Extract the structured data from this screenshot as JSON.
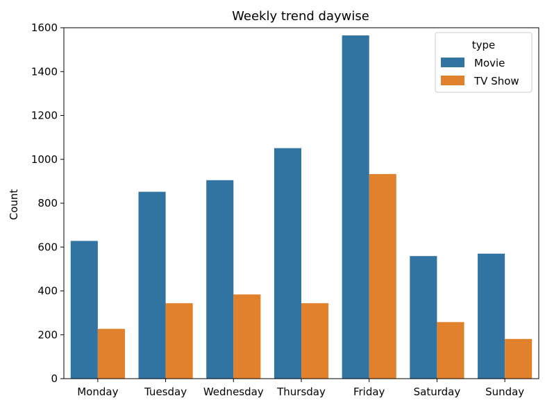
{
  "chart_data": {
    "type": "bar",
    "title": "Weekly trend daywise",
    "xlabel": "",
    "ylabel": "Count",
    "categories": [
      "Monday",
      "Tuesday",
      "Wednesday",
      "Thursday",
      "Friday",
      "Saturday",
      "Sunday"
    ],
    "series": [
      {
        "name": "Movie",
        "color": "#3274a1",
        "values": [
          628,
          852,
          905,
          1051,
          1565,
          559,
          570
        ]
      },
      {
        "name": "TV Show",
        "color": "#e1812c",
        "values": [
          227,
          344,
          384,
          344,
          933,
          258,
          181
        ]
      }
    ],
    "ylim": [
      0,
      1600
    ],
    "yticks": [
      0,
      200,
      400,
      600,
      800,
      1000,
      1200,
      1400,
      1600
    ],
    "grid": false,
    "legend": {
      "title": "type",
      "placement": "top-right"
    }
  }
}
